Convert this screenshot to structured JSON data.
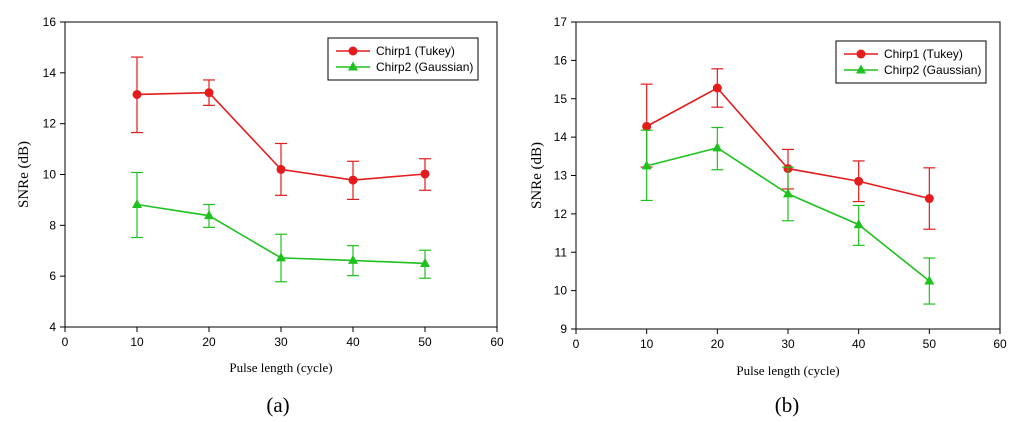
{
  "chart_data": [
    {
      "type": "line",
      "caption": "(a)",
      "xlabel": "Pulse length (cycle)",
      "ylabel": "SNRe  (dB)",
      "xlim": [
        0,
        60
      ],
      "ylim": [
        4,
        16
      ],
      "xticks": [
        0,
        10,
        20,
        30,
        40,
        50,
        60
      ],
      "yticks": [
        4,
        6,
        8,
        10,
        12,
        14,
        16
      ],
      "legend_position": "top-right",
      "x": [
        10,
        20,
        30,
        40,
        50
      ],
      "series": [
        {
          "name": "Chirp1 (Tukey)",
          "color": "#e41c1c",
          "marker": "circle",
          "values": [
            13.15,
            13.22,
            10.2,
            9.78,
            10.02
          ],
          "err_low": [
            11.65,
            12.72,
            9.18,
            9.02,
            9.38
          ],
          "err_high": [
            14.62,
            13.72,
            11.22,
            10.52,
            10.62
          ]
        },
        {
          "name": "Chirp2 (Gaussian)",
          "color": "#1ec21e",
          "marker": "triangle",
          "values": [
            8.82,
            8.38,
            6.72,
            6.62,
            6.5
          ],
          "err_low": [
            7.52,
            7.92,
            5.78,
            6.02,
            5.92
          ],
          "err_high": [
            10.08,
            8.82,
            7.65,
            7.2,
            7.02
          ]
        }
      ]
    },
    {
      "type": "line",
      "caption": "(b)",
      "xlabel": "Pulse length (cycle)",
      "ylabel": "SNRe  (dB)",
      "xlim": [
        0,
        60
      ],
      "ylim": [
        9,
        17
      ],
      "xticks": [
        0,
        10,
        20,
        30,
        40,
        50,
        60
      ],
      "yticks": [
        9,
        10,
        11,
        12,
        13,
        14,
        15,
        16,
        17
      ],
      "legend_position": "top-right",
      "x": [
        10,
        20,
        30,
        40,
        50
      ],
      "series": [
        {
          "name": "Chirp1 (Tukey)",
          "color": "#e41c1c",
          "marker": "circle",
          "values": [
            14.28,
            15.28,
            13.18,
            12.85,
            12.4
          ],
          "err_low": [
            13.22,
            14.78,
            12.65,
            12.32,
            11.6
          ],
          "err_high": [
            15.38,
            15.78,
            13.68,
            13.38,
            13.2
          ]
        },
        {
          "name": "Chirp2 (Gaussian)",
          "color": "#1ec21e",
          "marker": "triangle",
          "values": [
            13.25,
            13.72,
            12.52,
            11.72,
            10.25
          ],
          "err_low": [
            12.35,
            13.15,
            11.82,
            11.18,
            9.65
          ],
          "err_high": [
            14.18,
            14.25,
            13.22,
            12.22,
            10.85
          ]
        }
      ]
    }
  ]
}
